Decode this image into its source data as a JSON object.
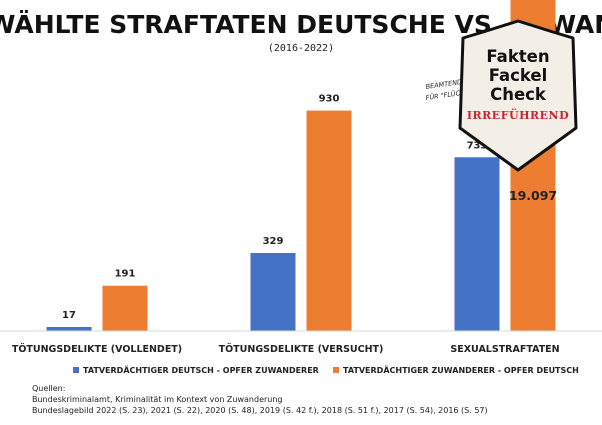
{
  "chart_data": {
    "type": "bar",
    "title": "AUSGEWÄHLTE STRAFTATEN DEUTSCHE VS. ZUWANDERER",
    "subtitle": "(2016-2022)",
    "categories": [
      "TÖTUNGSDELIKTE (VOLLENDET)",
      "TÖTUNGSDELIKTE (VERSUCHT)",
      "SEXUALSTRAFTATEN"
    ],
    "series": [
      {
        "name": "TATVERDÄCHTIGER DEUTSCH - OPFER ZUWANDERER",
        "color": "#4472c4",
        "values": [
          17,
          329,
          733
        ],
        "labels": [
          "17",
          "329",
          "733"
        ]
      },
      {
        "name": "TATVERDÄCHTIGER ZUWANDERER - OPFER DEUTSCH",
        "color": "#ed7d31",
        "values": [
          191,
          930,
          19097
        ],
        "labels": [
          "191",
          "930",
          "19.097"
        ]
      }
    ],
    "legend_position": "bottom",
    "grid": false
  },
  "annotation": {
    "line1": "BEAMTEND",
    "line2": "FÜR \"FLÜC"
  },
  "badge": {
    "lines": [
      "Fakten",
      "Fackel",
      "Check"
    ],
    "rating": "IRREFÜHREND",
    "fill": "#f3eee6",
    "rating_color": "#c8252c"
  },
  "sources": {
    "heading": "Quellen:",
    "line1": "Bundeskriminalamt, Kriminalität im Kontext von Zuwanderung",
    "line2": "Bundeslagebild 2022 (S. 23), 2021 (S. 22), 2020 (S. 48), 2019 (S. 42 f.), 2018 (S. 51 f.), 2017 (S. 54), 2016 (S. 57)"
  }
}
